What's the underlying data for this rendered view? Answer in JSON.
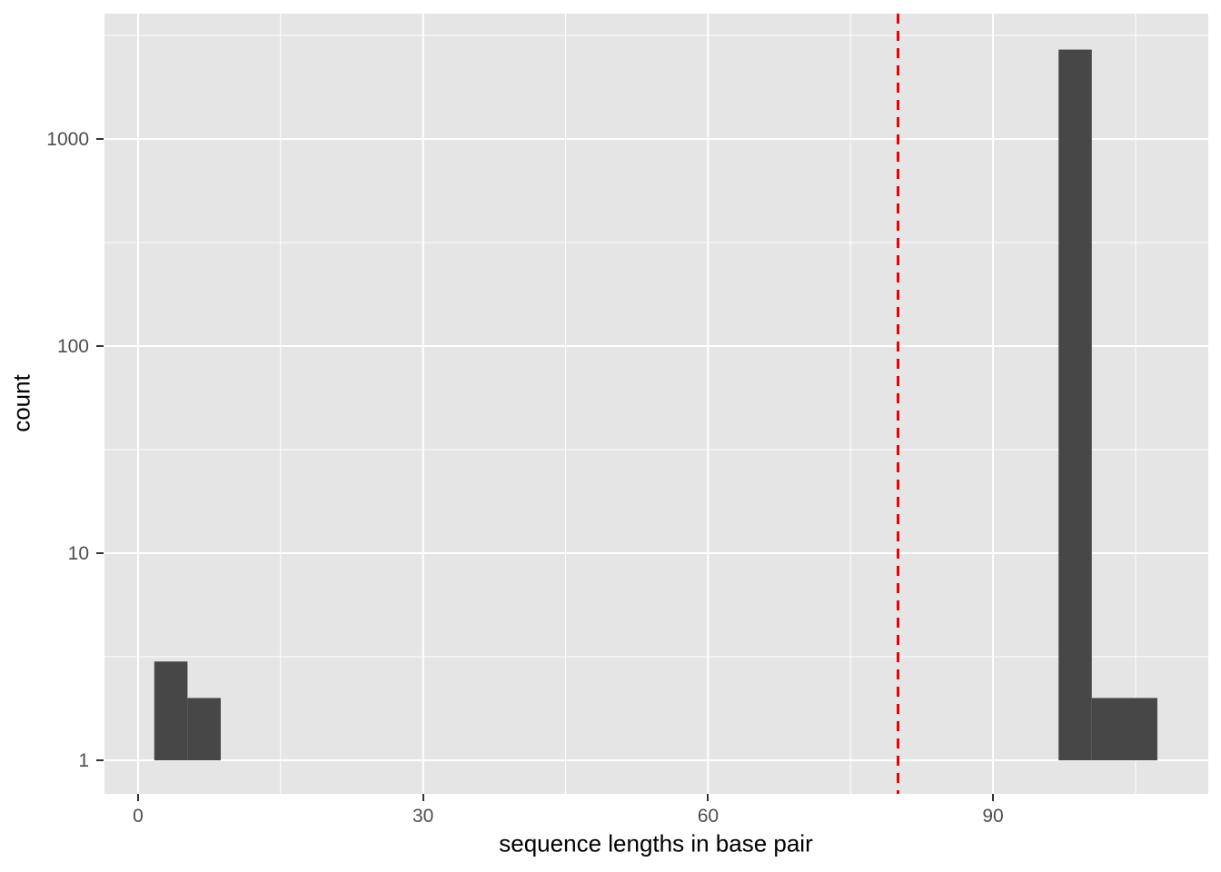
{
  "chart_data": {
    "type": "histogram-bar",
    "title": "",
    "xlabel": "sequence lengths in base pair",
    "ylabel": "count",
    "y_scale": "log10",
    "x_ticks": [
      0,
      30,
      60,
      90
    ],
    "x_tick_labels": [
      "0",
      "30",
      "60",
      "90"
    ],
    "x_minor_ticks": [
      15,
      45,
      75,
      105
    ],
    "y_ticks": [
      1,
      10,
      100,
      1000
    ],
    "y_tick_labels": [
      "1",
      "10",
      "100",
      "1000"
    ],
    "y_minor_ticks": [
      3.162,
      31.62,
      316.2,
      3162
    ],
    "xlim": [
      -3.54,
      112.66
    ],
    "ylim_log": [
      -0.162,
      3.605
    ],
    "bar_baseline": 1,
    "bars": [
      {
        "x0": 1.7,
        "x1": 5.2,
        "count": 3
      },
      {
        "x0": 5.2,
        "x1": 8.7,
        "count": 2
      },
      {
        "x0": 96.9,
        "x1": 100.4,
        "count": 2700
      },
      {
        "x0": 100.4,
        "x1": 107.3,
        "count": 2
      }
    ],
    "vline": {
      "x": 80,
      "style": "dashed"
    },
    "legend": "none",
    "grid": "major+minor",
    "colors": {
      "panel_bg": "#E5E5E5",
      "grid": "#FFFFFF",
      "bar": "#474747",
      "vline": "#EE0000",
      "tick_label": "#4D4D4D",
      "tick_mark": "#333333",
      "axis_title": "#000000",
      "outer_bg": "#FFFFFF"
    }
  }
}
